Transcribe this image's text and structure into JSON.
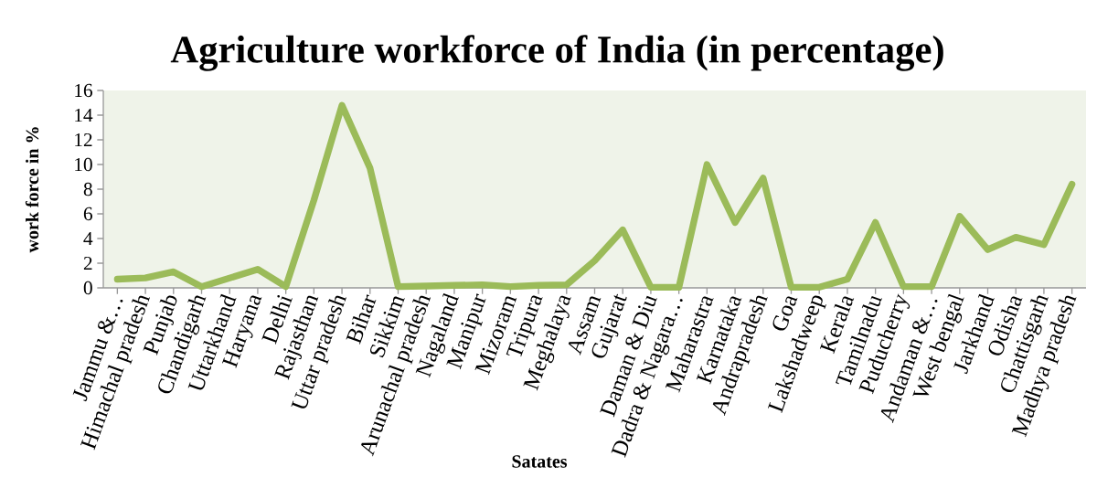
{
  "chart_data": {
    "type": "line",
    "title": "Agriculture workforce of India (in percentage)",
    "xlabel": "Satates",
    "ylabel": "work force in %",
    "categories": [
      "Jammu &…",
      "Himachal pradesh",
      "Punjab",
      "Chandigarh",
      "Uttarkhand",
      "Haryana",
      "Delhi",
      "Rajasthan",
      "Uttar pradesh",
      "Bihar",
      "Sikkim",
      "Arunachal pradesh",
      "Nagaland",
      "Manipur",
      "Mizoram",
      "Tripura",
      "Meghalaya",
      "Assam",
      "Gujarat",
      "Daman & Diu",
      "Dadra & Nagara…",
      "Maharastra",
      "Karnataka",
      "Andrapradesh",
      "Goa",
      "Lakshadweep",
      "Kerala",
      "Tamilnadu",
      "Puducherry",
      "Andaman &…",
      "West bengal",
      "Jarkhand",
      "Odisha",
      "Chattisgarh",
      "Madhya pradesh"
    ],
    "values": [
      0.7,
      0.8,
      1.3,
      0.1,
      0.8,
      1.5,
      0.1,
      7.1,
      14.8,
      9.7,
      0.1,
      0.15,
      0.2,
      0.25,
      0.1,
      0.2,
      0.25,
      2.2,
      4.7,
      0.05,
      0.05,
      10.0,
      5.3,
      8.9,
      0.05,
      0.05,
      0.7,
      5.3,
      0.1,
      0.1,
      5.8,
      3.1,
      4.1,
      3.5,
      8.4
    ],
    "color": "#9bbb59",
    "ylim": [
      0,
      16
    ],
    "yticks": [
      0,
      2,
      4,
      6,
      8,
      10,
      12,
      14,
      16
    ],
    "grid": false
  }
}
